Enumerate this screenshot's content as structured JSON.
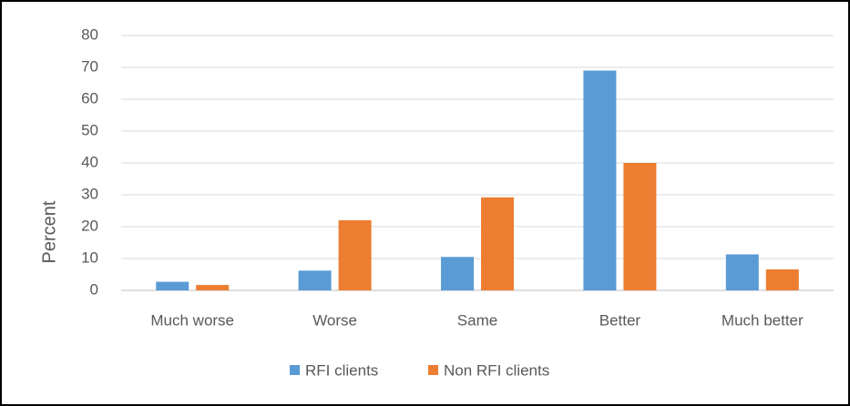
{
  "chart_data": {
    "type": "bar",
    "y_label": "Percent",
    "categories": [
      "Much worse",
      "Worse",
      "Same",
      "Better",
      "Much better"
    ],
    "series": [
      {
        "name": "RFI clients",
        "color": "#5b9bd5",
        "values": [
          2.7,
          6.2,
          10.5,
          69,
          11.3
        ]
      },
      {
        "name": "Non RFI clients",
        "color": "#ed7d31",
        "values": [
          1.7,
          22,
          29.2,
          40,
          6.6
        ]
      }
    ],
    "ylim": [
      0,
      80
    ],
    "yticks": [
      0,
      10,
      20,
      30,
      40,
      50,
      60,
      70,
      80
    ],
    "grid": true,
    "legend": "bottom"
  }
}
